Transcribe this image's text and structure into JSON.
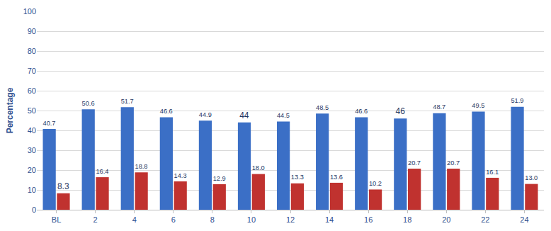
{
  "chart_data": {
    "type": "bar",
    "y_label": "Percentage",
    "categories": [
      "BL",
      "2",
      "4",
      "6",
      "8",
      "10",
      "12",
      "14",
      "16",
      "18",
      "20",
      "22",
      "24"
    ],
    "series": [
      {
        "color": "#3b6fc6",
        "values": [
          40.7,
          50.6,
          51.7,
          46.6,
          44.9,
          44,
          44.5,
          48.5,
          46.6,
          46,
          48.7,
          49.5,
          51.9
        ],
        "value_labels": [
          "40.7",
          "50.6",
          "51.7",
          "46.6",
          "44.9",
          "44",
          "44.5",
          "48.5",
          "46.6",
          "46",
          "48.7",
          "49.5",
          "51.9"
        ]
      },
      {
        "color": "#c0322f",
        "values": [
          8.3,
          16.4,
          18.8,
          14.3,
          12.9,
          18.0,
          13.3,
          13.6,
          10.2,
          20.7,
          20.7,
          16.1,
          13.0
        ],
        "value_labels": [
          "8.3",
          "16.4",
          "18.8",
          "14.3",
          "12.9",
          "18.0",
          "13.3",
          "13.6",
          "10.2",
          "20.7",
          "20.7",
          "16.1",
          "13.0"
        ]
      }
    ],
    "ylim": [
      0,
      100
    ],
    "yticks": [
      0,
      10,
      20,
      30,
      40,
      50,
      60,
      70,
      80,
      90,
      100
    ],
    "grid": true,
    "data_labels": true
  }
}
